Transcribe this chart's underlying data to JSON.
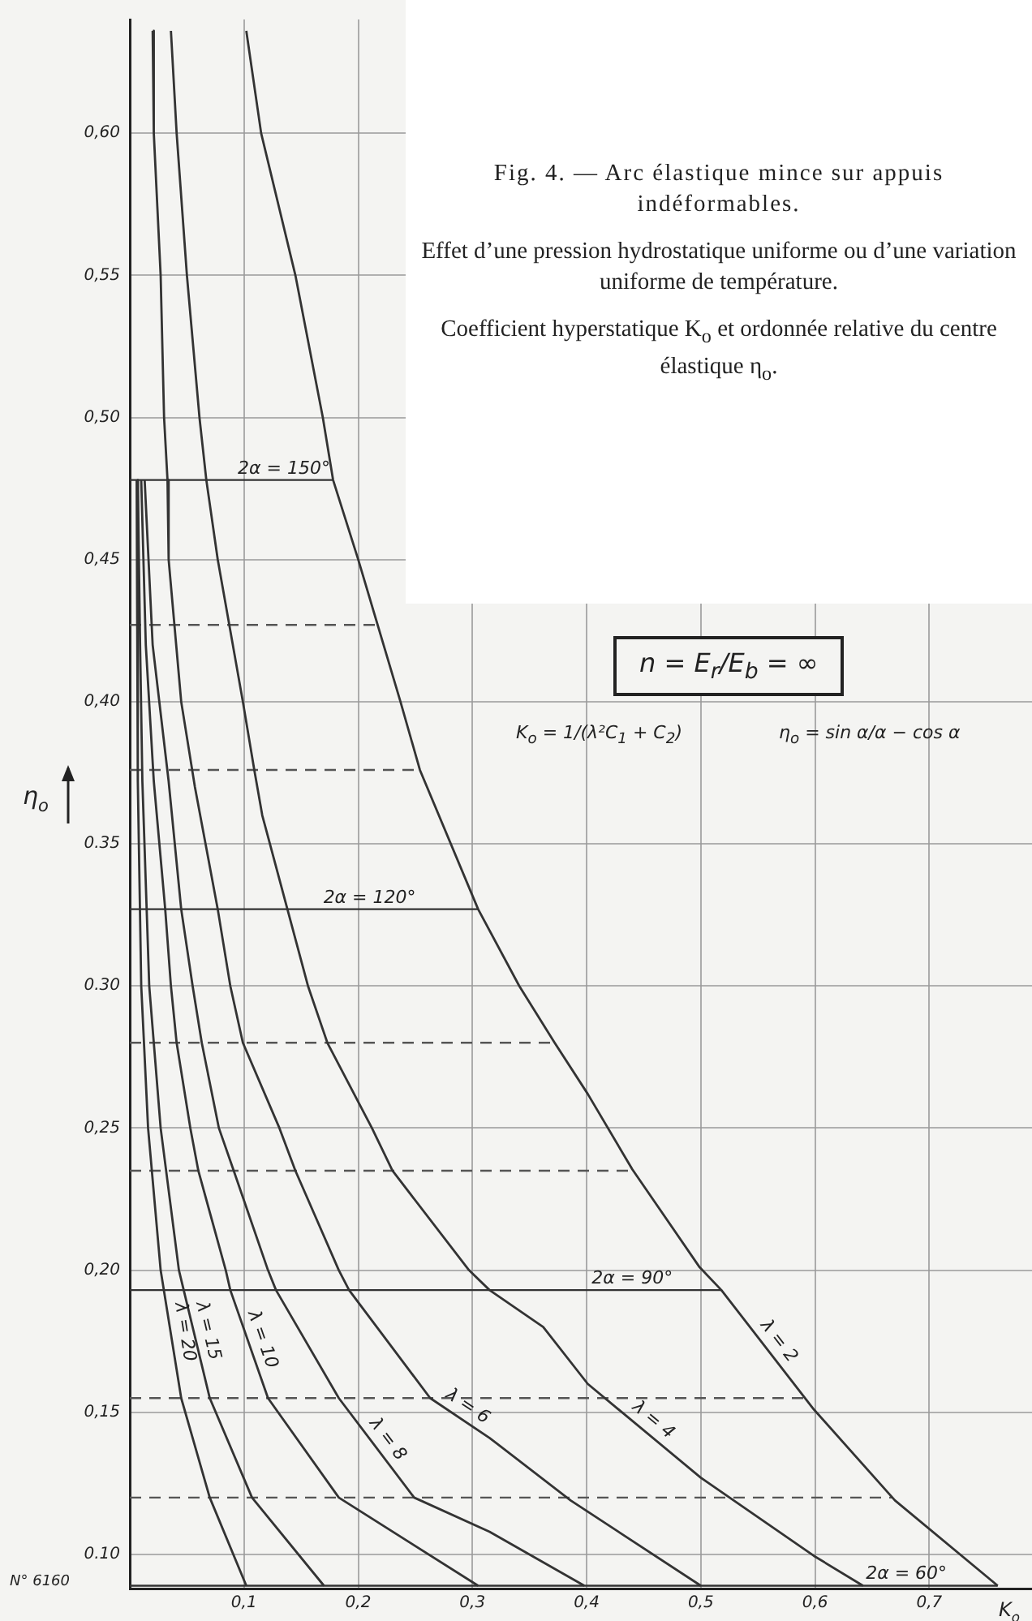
{
  "chart_data": {
    "type": "line",
    "title": "Fig. 4. — Arc élastique mince sur appuis indéformables.",
    "subtitle": "Effet d’une pression hydrostatique uniforme ou d’une variation uniforme de température.",
    "annotations": [
      "Coefficient hyperstatique K$_{o}$ et ordonnée relative du centre élastique η$_{o}$.",
      "n = E$_{r}$/E$_{b}$ = ∞",
      "K$_{o}$ = 1/(λ²C$_{1}$ + C$_{2}$)",
      "η$_{o}$ = sin α/α − cos α",
      "N° 6160",
      {
        "text": "2α = 150°",
        "x": 0.135,
        "y": 0.478
      },
      {
        "text": "2α = 120°",
        "x": 0.21,
        "y": 0.327
      },
      {
        "text": "2α = 90°",
        "x": 0.44,
        "y": 0.193
      },
      {
        "text": "2α = 60°",
        "x": 0.68,
        "y": 0.089
      }
    ],
    "xlabel": "K$_{o}$",
    "ylabel": "η$_{o}$",
    "xlim": [
      0,
      0.79
    ],
    "ylim": [
      0.088,
      0.64
    ],
    "xticks": [
      {
        "value": 0.1,
        "label": "0,1"
      },
      {
        "value": 0.2,
        "label": "0,2"
      },
      {
        "value": 0.3,
        "label": "0,3"
      },
      {
        "value": 0.4,
        "label": "0,4"
      },
      {
        "value": 0.5,
        "label": "0,5"
      },
      {
        "value": 0.6,
        "label": "0,6"
      },
      {
        "value": 0.7,
        "label": "0,7"
      }
    ],
    "yticks": [
      {
        "value": 0.1,
        "label": "0.10"
      },
      {
        "value": 0.15,
        "label": "0,15"
      },
      {
        "value": 0.2,
        "label": "0,20"
      },
      {
        "value": 0.25,
        "label": "0,25"
      },
      {
        "value": 0.3,
        "label": "0.30"
      },
      {
        "value": 0.35,
        "label": "0.35"
      },
      {
        "value": 0.4,
        "label": "0,40"
      },
      {
        "value": 0.45,
        "label": "0,45"
      },
      {
        "value": 0.5,
        "label": "0,50"
      },
      {
        "value": 0.55,
        "label": "0,55"
      },
      {
        "value": 0.6,
        "label": "0,60"
      }
    ],
    "grid": true,
    "legend": false,
    "line_style": "solid",
    "series": [
      {
        "name": "λ = 2",
        "color": "#333333",
        "x": [
          0.102,
          0.115,
          0.145,
          0.169,
          0.178,
          0.2,
          0.237,
          0.254,
          0.305,
          0.341,
          0.372,
          0.401,
          0.44,
          0.499,
          0.518,
          0.599,
          0.67,
          0.76
        ],
        "values": [
          0.636,
          0.6,
          0.55,
          0.5,
          0.478,
          0.45,
          0.4,
          0.376,
          0.327,
          0.3,
          0.28,
          0.262,
          0.2355,
          0.201,
          0.193,
          0.151,
          0.119,
          0.089
        ]
      },
      {
        "name": "λ = 4",
        "color": "#333333",
        "x": [
          0.036,
          0.041,
          0.05,
          0.061,
          0.067,
          0.077,
          0.099,
          0.109,
          0.116,
          0.138,
          0.156,
          0.173,
          0.212,
          0.23,
          0.297,
          0.315,
          0.362,
          0.401,
          0.5,
          0.599,
          0.642
        ],
        "values": [
          0.636,
          0.6,
          0.55,
          0.5,
          0.478,
          0.45,
          0.4,
          0.376,
          0.36,
          0.327,
          0.3,
          0.28,
          0.25,
          0.235,
          0.2,
          0.193,
          0.18,
          0.16,
          0.127,
          0.0995,
          0.089
        ]
      },
      {
        "name": "λ = 6",
        "color": "#333333",
        "x": [
          0.02,
          0.021,
          0.027,
          0.03,
          0.033,
          0.034,
          0.045,
          0.057,
          0.077,
          0.088,
          0.099,
          0.131,
          0.145,
          0.183,
          0.192,
          0.263,
          0.315,
          0.386,
          0.5
        ],
        "values": [
          0.636,
          0.6,
          0.55,
          0.5,
          0.478,
          0.45,
          0.4,
          0.37,
          0.327,
          0.3,
          0.28,
          0.25,
          0.235,
          0.2,
          0.193,
          0.155,
          0.141,
          0.119,
          0.089
        ]
      },
      {
        "name": "λ = 8",
        "color": "#333333",
        "x": [
          0.013,
          0.02,
          0.034,
          0.045,
          0.055,
          0.063,
          0.078,
          0.091,
          0.121,
          0.128,
          0.183,
          0.249,
          0.315,
          0.398
        ],
        "values": [
          0.478,
          0.42,
          0.372,
          0.327,
          0.3,
          0.28,
          0.25,
          0.235,
          0.2,
          0.193,
          0.155,
          0.12,
          0.108,
          0.089
        ]
      },
      {
        "name": "λ = 10",
        "color": "#333333",
        "x": [
          0.01,
          0.014,
          0.021,
          0.031,
          0.036,
          0.041,
          0.053,
          0.06,
          0.084,
          0.088,
          0.121,
          0.183,
          0.305
        ],
        "values": [
          0.478,
          0.42,
          0.372,
          0.327,
          0.3,
          0.28,
          0.25,
          0.235,
          0.2,
          0.193,
          0.155,
          0.12,
          0.089
        ]
      },
      {
        "name": "λ = 15",
        "color": "#333333",
        "x": [
          0.007,
          0.009,
          0.011,
          0.017,
          0.027,
          0.043,
          0.07,
          0.107,
          0.17
        ],
        "values": [
          0.478,
          0.42,
          0.372,
          0.3,
          0.25,
          0.2,
          0.155,
          0.12,
          0.089
        ]
      },
      {
        "name": "λ = 20",
        "color": "#333333",
        "x": [
          0.006,
          0.007,
          0.01,
          0.016,
          0.027,
          0.045,
          0.07,
          0.102
        ],
        "values": [
          0.478,
          0.372,
          0.3,
          0.25,
          0.2,
          0.155,
          0.12,
          0.089
        ]
      }
    ],
    "ref_lines": [
      {
        "axis": "y",
        "value": 0.478,
        "label": null,
        "color": "#333333",
        "line_style": "solid"
      },
      {
        "axis": "y",
        "value": 0.427,
        "label": null,
        "color": "#555555",
        "line_style": "dashed"
      },
      {
        "axis": "y",
        "value": 0.376,
        "label": null,
        "color": "#555555",
        "line_style": "dashed"
      },
      {
        "axis": "y",
        "value": 0.327,
        "label": null,
        "color": "#333333",
        "line_style": "solid"
      },
      {
        "axis": "y",
        "value": 0.28,
        "label": null,
        "color": "#555555",
        "line_style": "dashed"
      },
      {
        "axis": "y",
        "value": 0.235,
        "label": null,
        "color": "#555555",
        "line_style": "dashed"
      },
      {
        "axis": "y",
        "value": 0.193,
        "label": null,
        "color": "#333333",
        "line_style": "solid"
      },
      {
        "axis": "y",
        "value": 0.155,
        "label": null,
        "color": "#555555",
        "line_style": "dashed"
      },
      {
        "axis": "y",
        "value": 0.12,
        "label": null,
        "color": "#555555",
        "line_style": "dashed"
      },
      {
        "axis": "y",
        "value": 0.089,
        "label": null,
        "color": "#333333",
        "line_style": "solid"
      }
    ]
  }
}
